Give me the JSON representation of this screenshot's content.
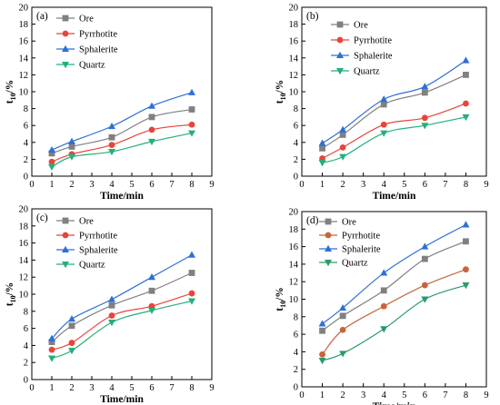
{
  "colors": {
    "Ore": "#808080",
    "Pyrrhotite": "#e8443a",
    "Sphalerite": "#2f6fd6",
    "Quartz": "#23b07a",
    "Pyrrhotite_d": "#c8643c",
    "Quartz_d": "#2a9a6a"
  },
  "chart_data": [
    {
      "type": "line",
      "panel_label": "(a)",
      "xlabel": "Time/min",
      "ylabel": "t",
      "ylabel_sub": "10",
      "ylabel_suffix": "/%",
      "x": [
        1,
        2,
        4,
        6,
        8
      ],
      "xlim": [
        0,
        9
      ],
      "ylim": [
        0,
        20
      ],
      "xticks": [
        "0",
        "1",
        "2",
        "3",
        "4",
        "5",
        "6",
        "7",
        "8",
        "9"
      ],
      "yticks": [
        "0",
        "2",
        "4",
        "6",
        "8",
        "10",
        "12",
        "14",
        "16",
        "18",
        "20"
      ],
      "legend_position": "top-left",
      "series": [
        {
          "name": "Ore",
          "marker": "square",
          "values": [
            2.7,
            3.5,
            4.6,
            7.0,
            7.9
          ]
        },
        {
          "name": "Pyrrhotite",
          "marker": "circle",
          "values": [
            1.7,
            2.6,
            3.7,
            5.5,
            6.1
          ]
        },
        {
          "name": "Sphalerite",
          "marker": "triangle-up",
          "values": [
            3.1,
            4.1,
            5.9,
            8.3,
            9.9
          ]
        },
        {
          "name": "Quartz",
          "marker": "triangle-down",
          "values": [
            1.1,
            2.3,
            2.9,
            4.1,
            5.1
          ]
        }
      ]
    },
    {
      "type": "line",
      "panel_label": "(b)",
      "xlabel": "Time/min",
      "ylabel": "t",
      "ylabel_sub": "10",
      "ylabel_suffix": "/%",
      "x": [
        1,
        2,
        4,
        6,
        8
      ],
      "xlim": [
        0,
        9
      ],
      "ylim": [
        0,
        20
      ],
      "xticks": [
        "0",
        "1",
        "2",
        "3",
        "4",
        "5",
        "6",
        "7",
        "8",
        "9"
      ],
      "yticks": [
        "0",
        "2",
        "4",
        "6",
        "8",
        "10",
        "12",
        "14",
        "16",
        "18",
        "20"
      ],
      "legend_position": "top-center",
      "series": [
        {
          "name": "Ore",
          "marker": "square",
          "values": [
            3.3,
            4.9,
            8.5,
            9.9,
            12.0
          ]
        },
        {
          "name": "Pyrrhotite",
          "marker": "circle",
          "values": [
            2.1,
            3.4,
            6.1,
            6.9,
            8.6
          ]
        },
        {
          "name": "Sphalerite",
          "marker": "triangle-up",
          "values": [
            3.9,
            5.5,
            9.1,
            10.6,
            13.7
          ]
        },
        {
          "name": "Quartz",
          "marker": "triangle-down",
          "values": [
            1.6,
            2.3,
            5.1,
            6.0,
            7.0
          ]
        }
      ]
    },
    {
      "type": "line",
      "panel_label": "(c)",
      "xlabel": "Time/min",
      "ylabel": "t",
      "ylabel_sub": "10",
      "ylabel_suffix": "/%",
      "x": [
        1,
        2,
        4,
        6,
        8
      ],
      "xlim": [
        0,
        9
      ],
      "ylim": [
        0,
        20
      ],
      "xticks": [
        "0",
        "1",
        "2",
        "3",
        "4",
        "5",
        "6",
        "7",
        "8",
        "9"
      ],
      "yticks": [
        "0",
        "2",
        "4",
        "6",
        "8",
        "10",
        "12",
        "14",
        "16",
        "18",
        "20"
      ],
      "legend_position": "top-left",
      "series": [
        {
          "name": "Ore",
          "marker": "square",
          "values": [
            4.4,
            6.3,
            8.7,
            10.4,
            12.5
          ]
        },
        {
          "name": "Pyrrhotite",
          "marker": "circle",
          "values": [
            3.5,
            4.3,
            7.5,
            8.6,
            10.1
          ]
        },
        {
          "name": "Sphalerite",
          "marker": "triangle-up",
          "values": [
            4.8,
            7.1,
            9.4,
            12.0,
            14.6
          ]
        },
        {
          "name": "Quartz",
          "marker": "triangle-down",
          "values": [
            2.5,
            3.4,
            6.7,
            8.1,
            9.2
          ]
        }
      ]
    },
    {
      "type": "line",
      "panel_label": "(d)",
      "xlabel": "Time/min",
      "ylabel": "t",
      "ylabel_sub": "10",
      "ylabel_suffix": "/%",
      "x": [
        1,
        2,
        4,
        6,
        8
      ],
      "xlim": [
        0,
        9
      ],
      "ylim": [
        0,
        20
      ],
      "xticks": [
        "0",
        "1",
        "2",
        "3",
        "4",
        "5",
        "6",
        "7",
        "8",
        "9"
      ],
      "yticks": [
        "0",
        "2",
        "4",
        "6",
        "8",
        "10",
        "12",
        "14",
        "16",
        "18",
        "20"
      ],
      "legend_position": "top-left",
      "series": [
        {
          "name": "Ore",
          "marker": "square",
          "values": [
            6.4,
            8.1,
            11.0,
            14.6,
            16.6
          ]
        },
        {
          "name": "Pyrrhotite",
          "marker": "circle",
          "values": [
            3.7,
            6.5,
            9.2,
            11.6,
            13.4
          ]
        },
        {
          "name": "Sphalerite",
          "marker": "triangle-up",
          "values": [
            7.2,
            9.0,
            13.0,
            16.0,
            18.5
          ]
        },
        {
          "name": "Quartz",
          "marker": "triangle-down",
          "values": [
            3.0,
            3.8,
            6.6,
            10.0,
            11.6
          ]
        }
      ]
    }
  ]
}
